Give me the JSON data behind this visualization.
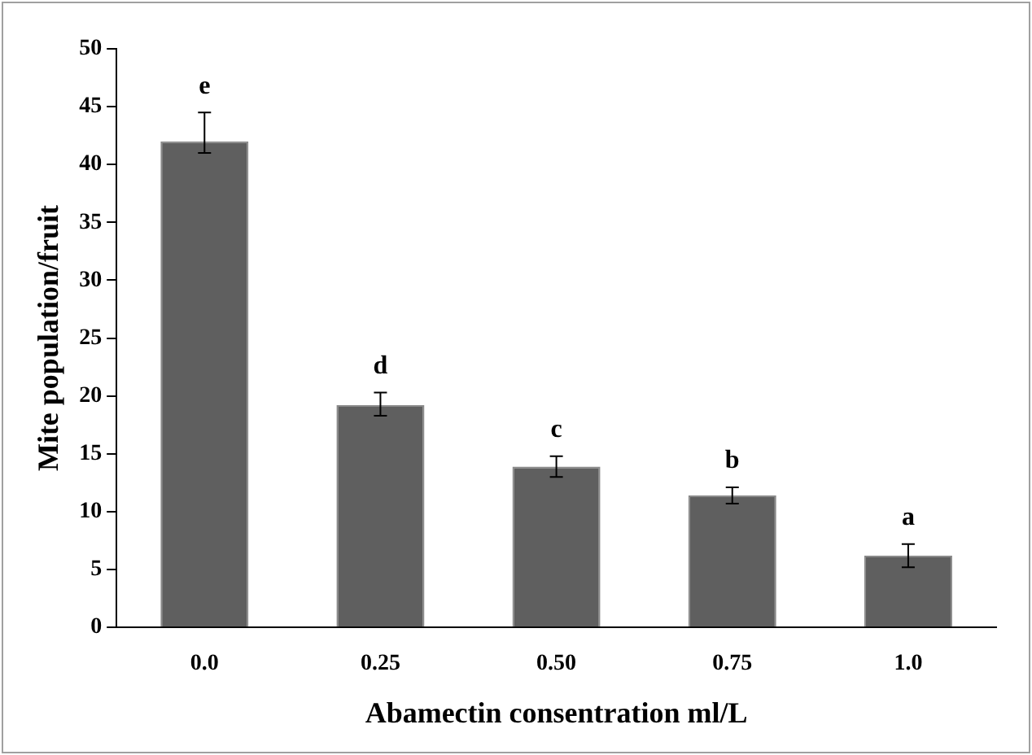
{
  "chart_data": {
    "type": "bar",
    "xlabel": "Abamectin consentration ml/L",
    "ylabel": "Mite population/fruit",
    "categories": [
      "0.0",
      "0.25",
      "0.50",
      "0.75",
      "1.0"
    ],
    "values": [
      42,
      19.2,
      13.9,
      11.4,
      6.2
    ],
    "errors": [
      [
        41,
        44.5
      ],
      [
        18.3,
        20.3
      ],
      [
        13,
        14.8
      ],
      [
        10.7,
        12.1
      ],
      [
        5.2,
        7.2
      ]
    ],
    "color": "#5f5f5f",
    "ylim": [
      0,
      50
    ],
    "yticks": [
      0,
      5,
      10,
      15,
      20,
      25,
      30,
      35,
      40,
      45,
      50
    ],
    "grid": false,
    "legend": false,
    "annotations": [
      {
        "text": "e",
        "x": "0.0",
        "y": 44.5
      },
      {
        "text": "d",
        "x": "0.25",
        "y": 20.3
      },
      {
        "text": "c",
        "x": "0.50",
        "y": 14.8
      },
      {
        "text": "b",
        "x": "0.75",
        "y": 12.1
      },
      {
        "text": "a",
        "x": "1.0",
        "y": 7.2
      }
    ]
  }
}
